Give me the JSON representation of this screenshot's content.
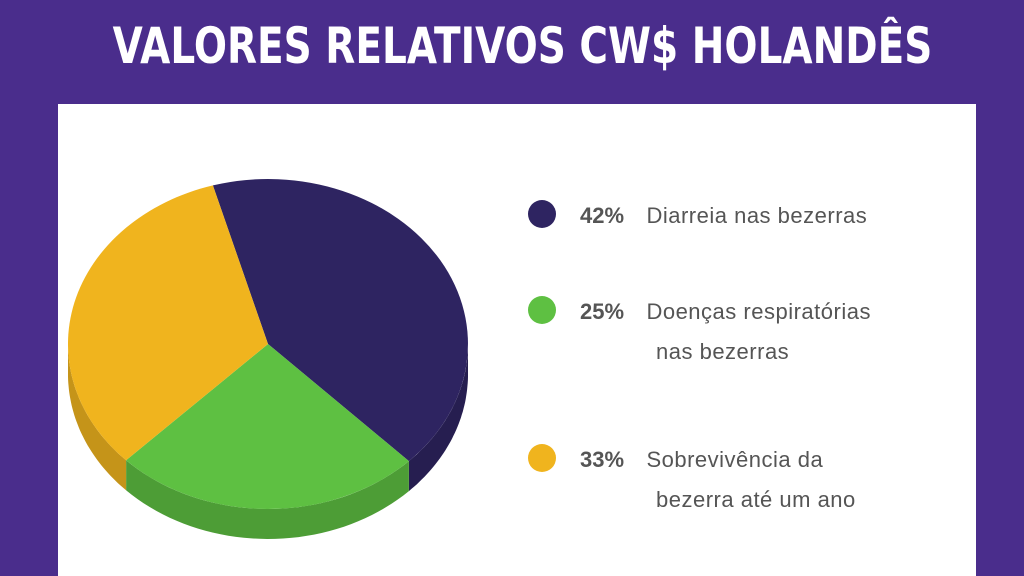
{
  "title": "VALORES RELATIVOS CW$ HOLANDÊS",
  "colors": {
    "background": "#4a2d8c",
    "panel": "#ffffff",
    "purple_slice": "#2e2461",
    "green_slice": "#5ec042",
    "yellow_slice": "#f0b41e"
  },
  "chart_data": {
    "type": "pie",
    "title": "VALORES RELATIVOS CW$ HOLANDÊS",
    "slices": [
      {
        "label": "Diarreia nas bezerras",
        "value": 42,
        "display": "42%",
        "color": "#2e2461"
      },
      {
        "label": "Doenças respiratórias nas bezerras",
        "value": 25,
        "display": "25%",
        "color": "#5ec042"
      },
      {
        "label": "Sobrevivência da bezerra até um ano",
        "value": 33,
        "display": "33%",
        "color": "#f0b41e"
      }
    ],
    "legend_placement": "right",
    "style": "3d"
  },
  "legend": [
    {
      "pct": "42%",
      "line1": "Diarreia nas bezerras",
      "line2": ""
    },
    {
      "pct": "25%",
      "line1": "Doenças respiratórias",
      "line2": "nas bezerras"
    },
    {
      "pct": "33%",
      "line1": "Sobrevivência da",
      "line2": "bezerra até um ano"
    }
  ]
}
